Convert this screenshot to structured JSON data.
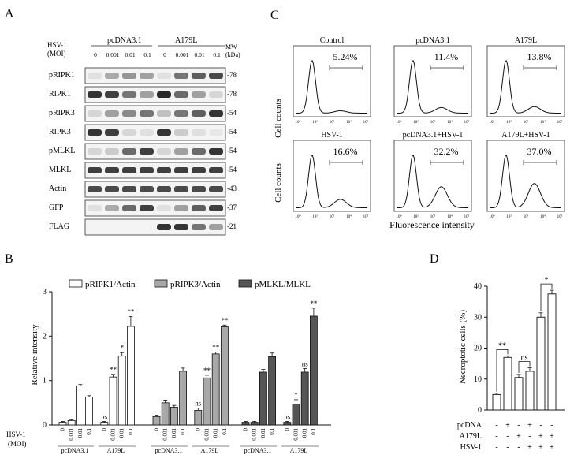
{
  "panel_letters": {
    "a": "A",
    "b": "B",
    "c": "C",
    "d": "D"
  },
  "panel_a": {
    "moi_label_1": "HSV-1",
    "moi_label_2": "(MOI)",
    "group_1": "pcDNA3.1",
    "group_2": "A179L",
    "mw_label_1": "MW",
    "mw_label_2": "(kDa)",
    "moi_values": [
      "0",
      "0.001",
      "0.01",
      "0.1",
      "0",
      "0.001",
      "0.01",
      "0.1"
    ],
    "rows": [
      {
        "label": "pRIPK1",
        "mw": "-78",
        "bands": [
          0.05,
          0.3,
          0.4,
          0.35,
          0.05,
          0.55,
          0.65,
          0.75
        ]
      },
      {
        "label": "RIPK1",
        "mw": "-78",
        "bands": [
          0.85,
          0.8,
          0.55,
          0.35,
          0.9,
          0.6,
          0.35,
          0.1
        ]
      },
      {
        "label": "pRIPK3",
        "mw": "-54",
        "bands": [
          0.1,
          0.35,
          0.45,
          0.55,
          0.2,
          0.55,
          0.65,
          0.85
        ]
      },
      {
        "label": "RIPK3",
        "mw": "-54",
        "bands": [
          0.85,
          0.8,
          0.1,
          0.05,
          0.85,
          0.15,
          0.05,
          0.02
        ]
      },
      {
        "label": "pMLKL",
        "mw": "-54",
        "bands": [
          0.1,
          0.15,
          0.6,
          0.8,
          0.1,
          0.35,
          0.6,
          0.85
        ]
      },
      {
        "label": "MLKL",
        "mw": "-54",
        "bands": [
          0.8,
          0.8,
          0.8,
          0.8,
          0.8,
          0.8,
          0.8,
          0.8
        ]
      },
      {
        "label": "Actin",
        "mw": "-43",
        "bands": [
          0.75,
          0.75,
          0.75,
          0.75,
          0.75,
          0.75,
          0.75,
          0.75
        ]
      },
      {
        "label": "GFP",
        "mw": "-37",
        "bands": [
          0.05,
          0.3,
          0.6,
          0.8,
          0.05,
          0.35,
          0.65,
          0.8
        ]
      },
      {
        "label": "FLAG",
        "mw": "-21",
        "bands": [
          0.0,
          0.0,
          0.0,
          0.0,
          0.85,
          0.85,
          0.55,
          0.35
        ]
      }
    ]
  },
  "panel_c": {
    "y_label": "Cell counts",
    "x_label": "Fluorescence intensity",
    "tick_labels": [
      "10⁰",
      "10²",
      "10³",
      "10⁴",
      "10⁵"
    ],
    "histograms": [
      {
        "title": "Control",
        "percent": "5.24%",
        "shape": 0.05
      },
      {
        "title": "pcDNA3.1",
        "percent": "11.4%",
        "shape": 0.12
      },
      {
        "title": "A179L",
        "percent": "13.8%",
        "shape": 0.14
      },
      {
        "title": "HSV-1",
        "percent": "16.6%",
        "shape": 0.18
      },
      {
        "title": "pcDNA3.1+HSV-1",
        "percent": "32.2%",
        "shape": 0.45
      },
      {
        "title": "A179L+HSV-1",
        "percent": "37.0%",
        "shape": 0.52
      }
    ]
  },
  "panel_b": {
    "ylabel": "Relative intensity",
    "moi_label_1": "HSV-1",
    "moi_label_2": "(MOI)",
    "legend": [
      "pRIPK1/Actin",
      "pRIPK3/Actin",
      "pMLKL/MLKL"
    ],
    "group_labels": [
      "pcDNA3.1",
      "A179L",
      "pcDNA3.1",
      "A179L",
      "pcDNA3.1",
      "A179L"
    ]
  },
  "panel_d": {
    "ylabel": "Necroptotic cells (%)",
    "row_labels": [
      "pcDNA",
      "A179L",
      "HSV-1"
    ],
    "signs": [
      [
        "-",
        "+",
        "-",
        "+",
        "-",
        "-"
      ],
      [
        "-",
        "-",
        "+",
        "-",
        "+",
        "+"
      ],
      [
        "-",
        "-",
        "-",
        "+",
        "+",
        "+"
      ]
    ]
  },
  "chart_data": [
    {
      "type": "bar",
      "ylim": [
        0,
        3
      ],
      "yticks": [
        "0",
        "1",
        "2",
        "3"
      ],
      "ylabel": "Relative intensity",
      "xlabel": "",
      "x_tick_labels": [
        "0",
        "0.001",
        "0.01",
        "0.1",
        "0",
        "0.001",
        "0.01",
        "0.1"
      ],
      "series": [
        {
          "name": "pRIPK1/Actin",
          "color": "#ffffff",
          "values": [
            0.06,
            0.1,
            0.88,
            0.63,
            0.06,
            1.08,
            1.55,
            2.22
          ],
          "errors": [
            0.02,
            0.02,
            0.03,
            0.03,
            0.02,
            0.06,
            0.08,
            0.22
          ],
          "annotations": [
            "",
            "",
            "",
            "",
            "ns",
            "**",
            "*",
            "**"
          ]
        },
        {
          "name": "pRIPK3/Actin",
          "color": "#a8a8a8",
          "values": [
            0.19,
            0.5,
            0.4,
            1.21,
            0.33,
            1.06,
            1.6,
            2.21
          ],
          "errors": [
            0.03,
            0.06,
            0.04,
            0.07,
            0.05,
            0.06,
            0.04,
            0.04
          ],
          "annotations": [
            "",
            "",
            "",
            "",
            "ns",
            "**",
            "**",
            "**"
          ]
        },
        {
          "name": "pMLKL/MLKL",
          "color": "#555555",
          "values": [
            0.06,
            0.06,
            1.19,
            1.54,
            0.06,
            0.47,
            1.19,
            2.45
          ],
          "errors": [
            0.02,
            0.02,
            0.06,
            0.08,
            0.02,
            0.1,
            0.08,
            0.18
          ],
          "annotations": [
            "",
            "",
            "",
            "",
            "ns",
            "*",
            "ns",
            "**"
          ]
        }
      ]
    },
    {
      "type": "bar",
      "ylim": [
        0,
        40
      ],
      "yticks": [
        "0",
        "10",
        "20",
        "30",
        "40"
      ],
      "ylabel": "Necroptotic cells (%)",
      "values": [
        5,
        17,
        10.5,
        12.5,
        30,
        37.5
      ],
      "errors": [
        0.4,
        0.5,
        1.0,
        1.1,
        1.4,
        1.2
      ],
      "brackets": [
        {
          "from": 0,
          "to": 1,
          "label": "**"
        },
        {
          "from": 2,
          "to": 3,
          "label": "ns"
        },
        {
          "from": 4,
          "to": 5,
          "label": "*"
        }
      ]
    }
  ]
}
